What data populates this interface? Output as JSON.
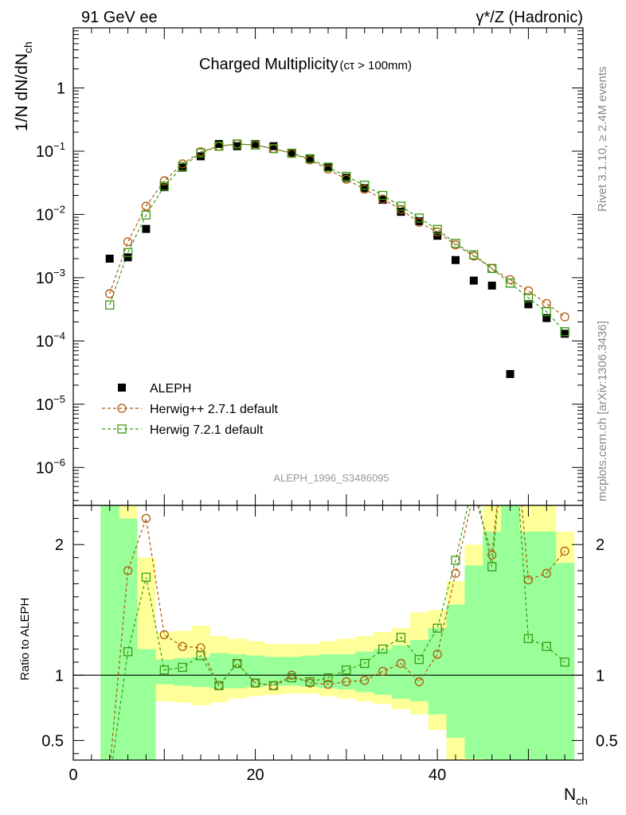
{
  "header": {
    "left": "91 GeV ee",
    "right": "γ*/Z (Hadronic)"
  },
  "side_labels": {
    "rivet": "Rivet 3.1.10, ≥ 2.4M events",
    "mcplots": "mcplots.cern.ch [arXiv:1306.3436]"
  },
  "chart_data": {
    "type": "scatter",
    "title_main": "Charged Multiplicity",
    "title_sub": "(cτ > 100mm)",
    "analysis_id": "ALEPH_1996_S3486095",
    "ylabel_main": "1/N dN/dN",
    "ylabel_main_sub": "ch",
    "ylabel_ratio": "Ratio to ALEPH",
    "xlabel": "N",
    "xlabel_sub": "ch",
    "xlim": [
      0,
      56
    ],
    "ylim_main_log10": [
      -6.6,
      0.95
    ],
    "ylim_ratio": [
      0.35,
      2.3
    ],
    "log_y_main": true,
    "x_ticks": [
      0,
      20,
      40
    ],
    "main_tick_labels": [
      {
        "base": "1",
        "exp": "",
        "value": 1
      },
      {
        "base": "10",
        "exp": "−1",
        "value": 0.1
      },
      {
        "base": "10",
        "exp": "−2",
        "value": 0.01
      },
      {
        "base": "10",
        "exp": "−3",
        "value": 0.001
      },
      {
        "base": "10",
        "exp": "−4",
        "value": 0.0001
      },
      {
        "base": "10",
        "exp": "−5",
        "value": 1e-05
      },
      {
        "base": "10",
        "exp": "−6",
        "value": 1e-06
      }
    ],
    "ratio_ticks": [
      {
        "label": "2",
        "value": 2
      },
      {
        "label": "1",
        "value": 1
      },
      {
        "label": "0.5",
        "value": 0.5
      }
    ],
    "legend_position": "lower-left",
    "x": [
      4,
      6,
      8,
      10,
      12,
      14,
      16,
      18,
      20,
      22,
      24,
      26,
      28,
      30,
      32,
      34,
      36,
      38,
      40,
      42,
      44,
      46,
      48,
      50,
      52,
      54
    ],
    "series": [
      {
        "name": "ALEPH",
        "color": "#000000",
        "marker": "filled-square",
        "values": [
          0.002,
          0.0021,
          0.0059,
          0.027,
          0.055,
          0.083,
          0.13,
          0.12,
          0.13,
          0.12,
          0.092,
          0.075,
          0.055,
          0.038,
          0.026,
          0.017,
          0.011,
          0.0078,
          0.0046,
          0.0019,
          0.0009,
          0.00075,
          3e-05,
          0.00038,
          0.00023,
          0.00013
        ]
      },
      {
        "name": "Herwig++ 2.7.1 default",
        "color": "#b05a0e",
        "marker": "open-circle",
        "values": [
          0.00056,
          0.0037,
          0.0135,
          0.034,
          0.063,
          0.098,
          0.12,
          0.13,
          0.125,
          0.11,
          0.092,
          0.073,
          0.052,
          0.036,
          0.025,
          0.0175,
          0.012,
          0.0075,
          0.0053,
          0.0033,
          0.0022,
          0.0014,
          0.00093,
          0.00062,
          0.00039,
          0.00024
        ]
      },
      {
        "name": "Herwig 7.2.1 default",
        "color": "#3a9a12",
        "marker": "open-square",
        "values": [
          0.00037,
          0.0025,
          0.0098,
          0.028,
          0.057,
          0.094,
          0.12,
          0.13,
          0.125,
          0.11,
          0.093,
          0.076,
          0.056,
          0.04,
          0.029,
          0.02,
          0.0135,
          0.0088,
          0.0058,
          0.0035,
          0.0023,
          0.0014,
          0.00082,
          0.00048,
          0.00029,
          0.00014
        ]
      }
    ],
    "ratio_series": [
      {
        "name": "Herwig++ 2.7.1 default",
        "values": [
          0.28,
          1.8,
          2.2,
          1.31,
          1.22,
          1.21,
          0.92,
          1.09,
          0.94,
          0.92,
          1.0,
          0.94,
          0.93,
          0.95,
          0.96,
          1.03,
          1.09,
          0.95,
          1.16,
          1.78,
          2.4,
          1.92,
          31,
          1.73,
          1.78,
          1.95
        ]
      },
      {
        "name": "Herwig 7.2.1 default",
        "values": [
          0.19,
          1.18,
          1.75,
          1.04,
          1.06,
          1.15,
          0.92,
          1.09,
          0.94,
          0.92,
          0.98,
          0.95,
          0.98,
          1.04,
          1.09,
          1.2,
          1.29,
          1.12,
          1.36,
          1.88,
          2.5,
          1.83,
          27,
          1.28,
          1.22,
          1.1
        ]
      }
    ],
    "uncertainty_bands": {
      "bin_edges": [
        3,
        5,
        7,
        9,
        11,
        13,
        15,
        17,
        19,
        21,
        23,
        25,
        27,
        29,
        31,
        33,
        35,
        37,
        39,
        41,
        43,
        45,
        47,
        49,
        51,
        53,
        55
      ],
      "yellow": {
        "color": "#ffff99",
        "lower": [
          0.0,
          0.0,
          0.6,
          0.8,
          0.79,
          0.77,
          0.79,
          0.82,
          0.84,
          0.85,
          0.86,
          0.86,
          0.84,
          0.82,
          0.8,
          0.78,
          0.74,
          0.7,
          0.58,
          0.28,
          0.0,
          0.0,
          0.0,
          0.0,
          0.0,
          0.0
        ],
        "upper": [
          9.9,
          2.3,
          1.9,
          1.33,
          1.34,
          1.38,
          1.3,
          1.28,
          1.26,
          1.24,
          1.24,
          1.24,
          1.26,
          1.28,
          1.3,
          1.33,
          1.36,
          1.48,
          1.5,
          1.72,
          2.0,
          9.9,
          9.9,
          2.3,
          2.3,
          2.1
        ]
      },
      "green": {
        "color": "#99ff99",
        "lower": [
          0.0,
          0.0,
          0.2,
          0.93,
          0.92,
          0.91,
          0.9,
          0.9,
          0.91,
          0.92,
          0.92,
          0.91,
          0.9,
          0.89,
          0.87,
          0.85,
          0.82,
          0.8,
          0.7,
          0.52,
          0.36,
          0.0,
          0.0,
          0.0,
          0.0,
          0.0
        ],
        "upper": [
          9.9,
          2.2,
          1.2,
          1.12,
          1.13,
          1.14,
          1.17,
          1.16,
          1.15,
          1.14,
          1.14,
          1.15,
          1.16,
          1.16,
          1.18,
          1.2,
          1.23,
          1.27,
          1.36,
          1.54,
          1.84,
          2.1,
          9.9,
          2.1,
          2.1,
          1.86
        ]
      }
    }
  }
}
